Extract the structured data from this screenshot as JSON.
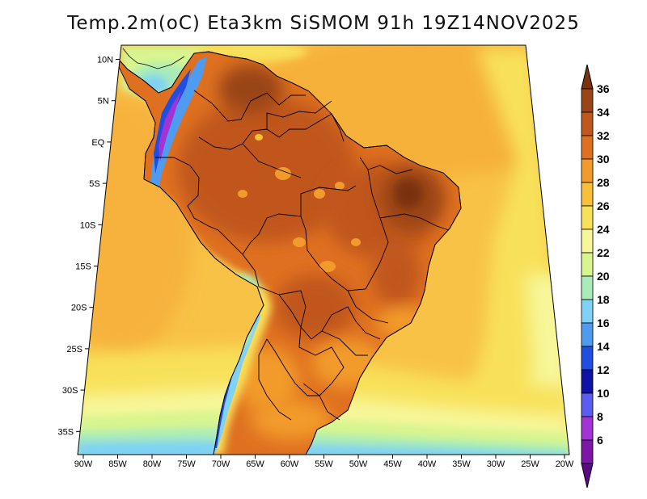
{
  "title": "Temp.2m(oC) Eta3km SiSMOM 91h 19Z14NOV2025",
  "lat_labels": [
    "10N",
    "5N",
    "EQ",
    "5S",
    "10S",
    "15S",
    "20S",
    "25S",
    "30S",
    "35S"
  ],
  "lon_labels": [
    "90W",
    "85W",
    "80W",
    "75W",
    "70W",
    "65W",
    "60W",
    "55W",
    "50W",
    "45W",
    "40W",
    "35W",
    "30W",
    "25W",
    "20W"
  ],
  "colorbar": {
    "labels": [
      "36",
      "34",
      "32",
      "30",
      "28",
      "26",
      "24",
      "22",
      "20",
      "18",
      "16",
      "14",
      "12",
      "10",
      "8",
      "6"
    ],
    "colors": [
      "#7a3311",
      "#9a4518",
      "#c0571d",
      "#df7021",
      "#f29b2c",
      "#f8bf3a",
      "#f8e15a",
      "#f7f79a",
      "#d8f58f",
      "#a9ecb9",
      "#7fd2f4",
      "#4f9bf0",
      "#1f4ee0",
      "#0f12a8",
      "#5b5cf0",
      "#a233d6",
      "#7d17a6",
      "#5a0a84"
    ]
  },
  "chart_data": {
    "type": "heatmap",
    "title": "Temp.2m(oC) Eta3km SiSMOM 91h 19Z14NOV2025",
    "variable": "2 m air temperature",
    "units": "oC",
    "model": "Eta3km SiSMOM",
    "forecast_hour": "91h",
    "valid_time": "19Z14NOV2025",
    "lon_range": [
      -90,
      -20
    ],
    "lat_range": [
      -38,
      11
    ],
    "colorbar_range": [
      6,
      36
    ],
    "colorbar_step": 2,
    "pattern": "Hottest (32-36) over NE Brazil, Amazon and Chaco; ocean 20-28; cold (6-18) along the Andes."
  }
}
